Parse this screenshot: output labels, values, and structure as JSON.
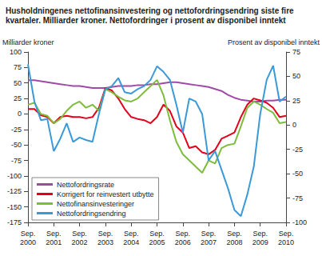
{
  "chart_data": {
    "type": "line",
    "title": "Husholdningenes nettofinansinvestering og nettofordringsendring siste fire kvartaler. Milliarder kroner. Nettofordringer i prosent av disponibel inntekt",
    "ylabel": "Milliarder kroner",
    "y2label": "Prosent av disponibel inntekt",
    "categories": [
      "Sep. 2000",
      null,
      null,
      null,
      "Sep. 2001",
      null,
      null,
      null,
      "Sep. 2002",
      null,
      null,
      null,
      "Sep. 2003",
      null,
      null,
      null,
      "Sep. 2004",
      null,
      null,
      null,
      "Sep. 2005",
      null,
      null,
      null,
      "Sep. 2006",
      null,
      null,
      null,
      "Sep. 2007",
      null,
      null,
      null,
      "Sep. 2008",
      null,
      null,
      null,
      "Sep. 2009",
      null,
      null,
      null,
      "Sep. 2010"
    ],
    "ylim": [
      -175,
      100
    ],
    "yticks": [
      -175,
      -150,
      -125,
      -100,
      -75,
      -50,
      -25,
      0,
      25,
      50,
      75,
      100
    ],
    "y2lim": [
      -100,
      75
    ],
    "y2ticks": [
      -100,
      -75,
      -50,
      -25,
      0,
      25,
      50,
      75
    ],
    "grid": false,
    "legend": "lower left",
    "series": [
      {
        "name": "Nettofordringsrate",
        "color": "#a04aa8",
        "axis": "y2",
        "values": [
          46,
          46,
          45,
          44,
          43,
          42,
          41,
          40,
          40,
          39,
          38,
          38,
          38,
          39,
          40,
          40,
          40,
          41,
          41,
          42,
          42,
          43,
          44,
          44,
          43,
          42,
          41,
          40,
          39,
          37,
          35,
          31,
          28,
          26,
          25,
          24,
          24,
          25,
          25,
          26,
          26
        ]
      },
      {
        "name": "Korrigert for reinvestert utbytte",
        "color": "#e2001a",
        "values": [
          8,
          8,
          -2,
          -5,
          -15,
          -5,
          -3,
          -5,
          -5,
          -7,
          -5,
          10,
          42,
          38,
          25,
          8,
          -5,
          -8,
          -10,
          -15,
          -5,
          15,
          5,
          -20,
          -30,
          -55,
          -52,
          -62,
          -65,
          -58,
          -40,
          -35,
          -30,
          -5,
          15,
          25,
          22,
          18,
          10,
          -5,
          -3
        ]
      },
      {
        "name": "Nettofinansinvesteringer",
        "color": "#7dbd3b",
        "values": [
          15,
          18,
          0,
          -3,
          -15,
          -8,
          5,
          15,
          20,
          10,
          15,
          5,
          40,
          35,
          28,
          22,
          20,
          25,
          35,
          45,
          55,
          30,
          -10,
          -45,
          -65,
          -75,
          -85,
          -95,
          -75,
          -80,
          -55,
          -50,
          -48,
          -20,
          10,
          20,
          15,
          8,
          2,
          -15,
          -13
        ]
      },
      {
        "name": "Nettofordringsendring",
        "color": "#3a9ad9",
        "values": [
          80,
          20,
          -10,
          -8,
          -60,
          -40,
          -15,
          -45,
          -38,
          -42,
          -45,
          0,
          40,
          45,
          58,
          35,
          33,
          40,
          45,
          55,
          77,
          68,
          55,
          15,
          -30,
          25,
          20,
          0,
          -75,
          -60,
          -90,
          -120,
          -155,
          -165,
          -130,
          -85,
          0,
          55,
          78,
          20,
          28
        ]
      }
    ]
  }
}
